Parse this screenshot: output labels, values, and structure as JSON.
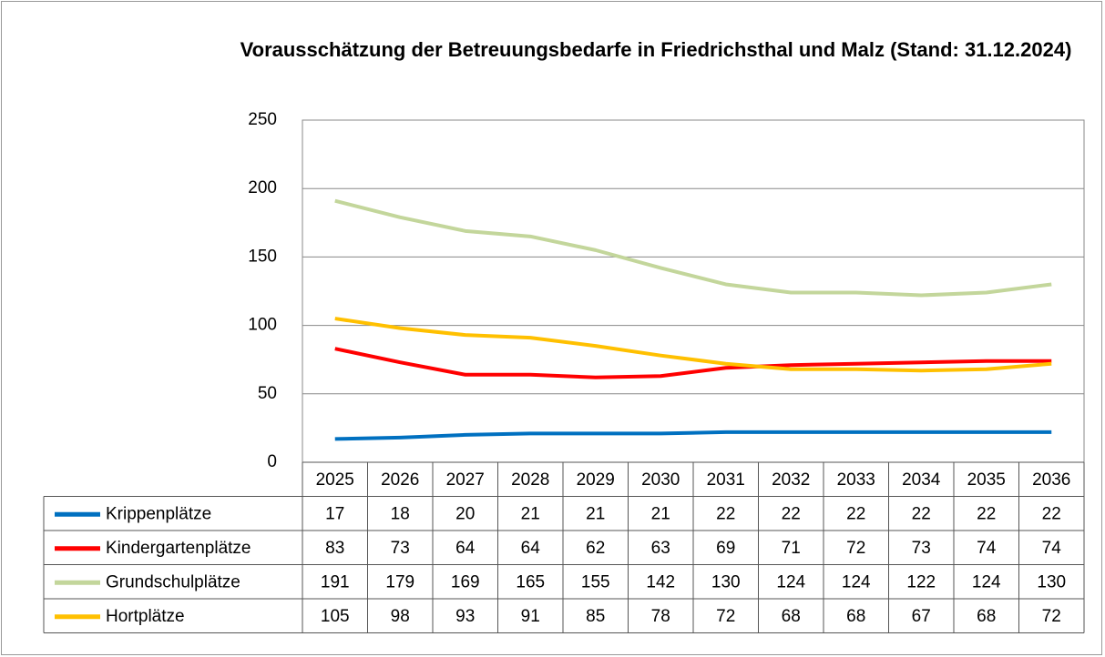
{
  "chart_data": {
    "type": "line",
    "title": "Vorausschätzung der Betreuungsbedarfe in Friedrichsthal und Malz (Stand: 31.12.2024)",
    "categories": [
      "2025",
      "2026",
      "2027",
      "2028",
      "2029",
      "2030",
      "2031",
      "2032",
      "2033",
      "2034",
      "2035",
      "2036"
    ],
    "series": [
      {
        "name": "Krippenplätze",
        "color": "#0070c0",
        "values": [
          17,
          18,
          20,
          21,
          21,
          21,
          22,
          22,
          22,
          22,
          22,
          22
        ]
      },
      {
        "name": "Kindergartenplätze",
        "color": "#ff0000",
        "values": [
          83,
          73,
          64,
          64,
          62,
          63,
          69,
          71,
          72,
          73,
          74,
          74
        ]
      },
      {
        "name": "Grundschulplätze",
        "color": "#c3d69b",
        "values": [
          191,
          179,
          169,
          165,
          155,
          142,
          130,
          124,
          124,
          122,
          124,
          130
        ]
      },
      {
        "name": "Hortplätze",
        "color": "#ffc000",
        "values": [
          105,
          98,
          93,
          91,
          85,
          78,
          72,
          68,
          68,
          67,
          68,
          72
        ]
      }
    ],
    "ylim": [
      0,
      250
    ],
    "yticks": [
      0,
      50,
      100,
      150,
      200,
      250
    ],
    "grid": true
  }
}
